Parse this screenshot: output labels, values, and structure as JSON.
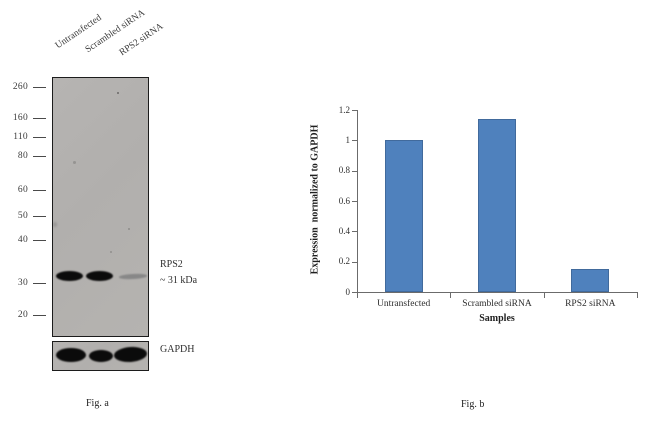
{
  "figure": {
    "fig_a": {
      "caption": "Fig. a",
      "lane_labels": [
        "Untransfected",
        "Scrambled siRNA",
        "RPS2 siRNA"
      ],
      "marker_labels": [
        "260",
        "160",
        "110",
        "80",
        "60",
        "50",
        "40",
        "30",
        "20"
      ],
      "target_label": "RPS2",
      "size_label": "~ 31 kDa",
      "loading_control_label": "GAPDH"
    },
    "fig_b": {
      "caption": "Fig. b"
    }
  },
  "chart_data": {
    "type": "bar",
    "title": "",
    "categories": [
      "Untransfected",
      "Scrambled siRNA",
      "RPS2 siRNA"
    ],
    "values": [
      1.0,
      1.14,
      0.15
    ],
    "xlabel": "Samples",
    "ylabel": "Expression  normalized to GAPDH",
    "ylim": [
      0,
      1.2
    ],
    "yticks": [
      0,
      0.2,
      0.4,
      0.6,
      0.8,
      1,
      1.2
    ],
    "ytick_labels": [
      "0",
      "0.2",
      "0.4",
      "0.6",
      "0.8",
      "1",
      "1.2"
    ],
    "bar_color": "#4f81bd",
    "axis_color": "#6b6b6b",
    "grid": false,
    "legend": false
  }
}
